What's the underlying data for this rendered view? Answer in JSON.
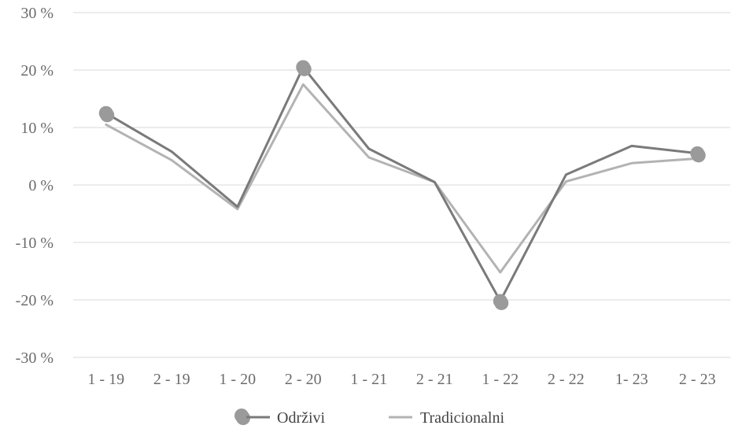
{
  "chart_data": {
    "type": "line",
    "categories": [
      "1 - 19",
      "2 - 19",
      "1 - 20",
      "2 - 20",
      "1 - 21",
      "2 - 21",
      "1 - 22",
      "2 - 22",
      "1- 23",
      "2 - 23"
    ],
    "yticks": [
      "30 %",
      "20 %",
      "10 %",
      "0 %",
      "-10 %",
      "-20 %",
      "-30 %"
    ],
    "ylim": [
      -30,
      30
    ],
    "grid": true,
    "legend_position": "bottom",
    "series": [
      {
        "name": "Održivi",
        "color": "#7a7a7a",
        "values": [
          12.5,
          5.8,
          -3.8,
          20.5,
          6.3,
          0.5,
          -20.2,
          1.8,
          6.8,
          5.5
        ],
        "markers": [
          0,
          3,
          6,
          9
        ]
      },
      {
        "name": "Tradicionalni",
        "color": "#b3b3b3",
        "values": [
          10.5,
          4.3,
          -4.2,
          17.5,
          4.8,
          0.5,
          -15.2,
          0.6,
          3.8,
          4.6
        ]
      }
    ],
    "marker_color": "#9a9a9a"
  }
}
